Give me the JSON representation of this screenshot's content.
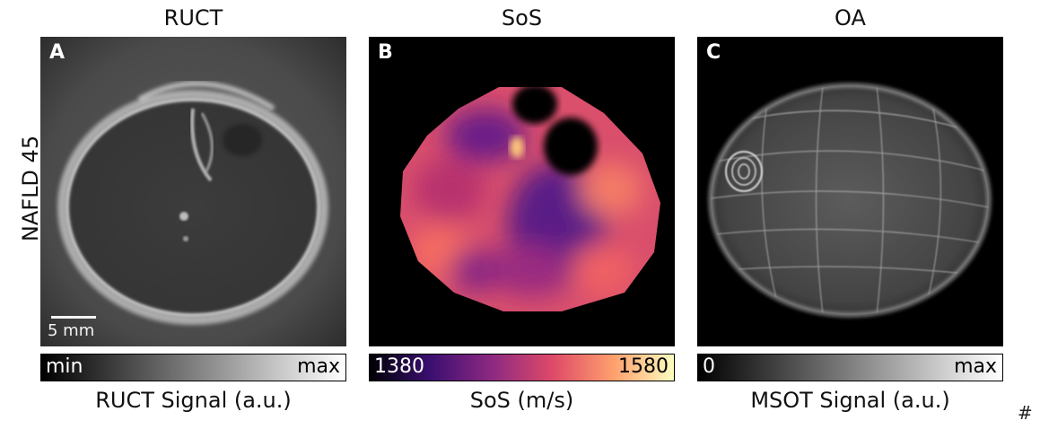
{
  "row_label": "NAFLD 45",
  "panels": [
    {
      "title": "RUCT",
      "letter": "A",
      "scale_bar_label": "5 mm",
      "colorbar": {
        "min_label": "min",
        "max_label": "max",
        "label": "RUCT Signal (a.u.)",
        "colors": [
          "#000000",
          "#ffffff"
        ]
      }
    },
    {
      "title": "SoS",
      "letter": "B",
      "colorbar": {
        "min_label": "1380",
        "max_label": "1580",
        "label": "SoS (m/s)",
        "colors": [
          "#000004",
          "#3b0f70",
          "#8c2981",
          "#de4968",
          "#fe9f6d",
          "#fcfdbf"
        ]
      }
    },
    {
      "title": "OA",
      "letter": "C",
      "colorbar": {
        "min_label": "0",
        "max_label": "max",
        "label": "MSOT Signal (a.u.)",
        "colors": [
          "#000000",
          "#ffffff"
        ]
      }
    }
  ],
  "corner_mark": "#"
}
